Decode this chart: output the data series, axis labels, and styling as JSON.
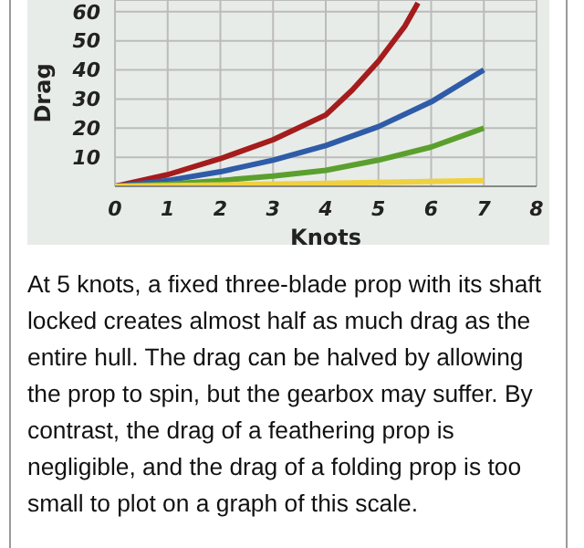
{
  "chart_data": {
    "type": "line",
    "xlabel": "Knots",
    "ylabel": "Drag",
    "xlim": [
      0,
      8
    ],
    "xticks": [
      0,
      1,
      2,
      3,
      4,
      5,
      6,
      7,
      8
    ],
    "ylim": [
      0,
      64
    ],
    "yticks": [
      10,
      20,
      30,
      40,
      50,
      60
    ],
    "grid": true,
    "legend": false,
    "marker": "none",
    "line_style": "solid",
    "series": [
      {
        "color": "#a51c1c",
        "x": [
          0,
          1,
          2,
          3,
          4,
          4.5,
          5,
          5.5,
          5.75
        ],
        "values": [
          0,
          4,
          9.5,
          16,
          24.5,
          33,
          43,
          55,
          63
        ]
      },
      {
        "color": "#2f5ca8",
        "x": [
          0,
          1,
          2,
          3,
          4,
          5,
          6,
          7
        ],
        "values": [
          0,
          2,
          5,
          9,
          14,
          20.5,
          29,
          40
        ]
      },
      {
        "color": "#5ba02e",
        "x": [
          0,
          1,
          2,
          3,
          4,
          5,
          6,
          7
        ],
        "values": [
          0,
          0.7,
          2,
          3.5,
          5.5,
          9,
          13.5,
          20
        ]
      },
      {
        "color": "#efd040",
        "x": [
          0,
          2,
          4,
          7
        ],
        "values": [
          0,
          0.5,
          1,
          2
        ]
      }
    ],
    "annotations": [
      "At 5 knots, a fixed three-blade prop with its shaft locked creates almost half as much drag as the entire hull. The drag can be halved by allowing the prop to spin, but the gearbox may suffer. By contrast, the drag of a feathering prop is negligible, and the drag of a folding prop is too small to plot on a graph of this scale."
    ]
  }
}
